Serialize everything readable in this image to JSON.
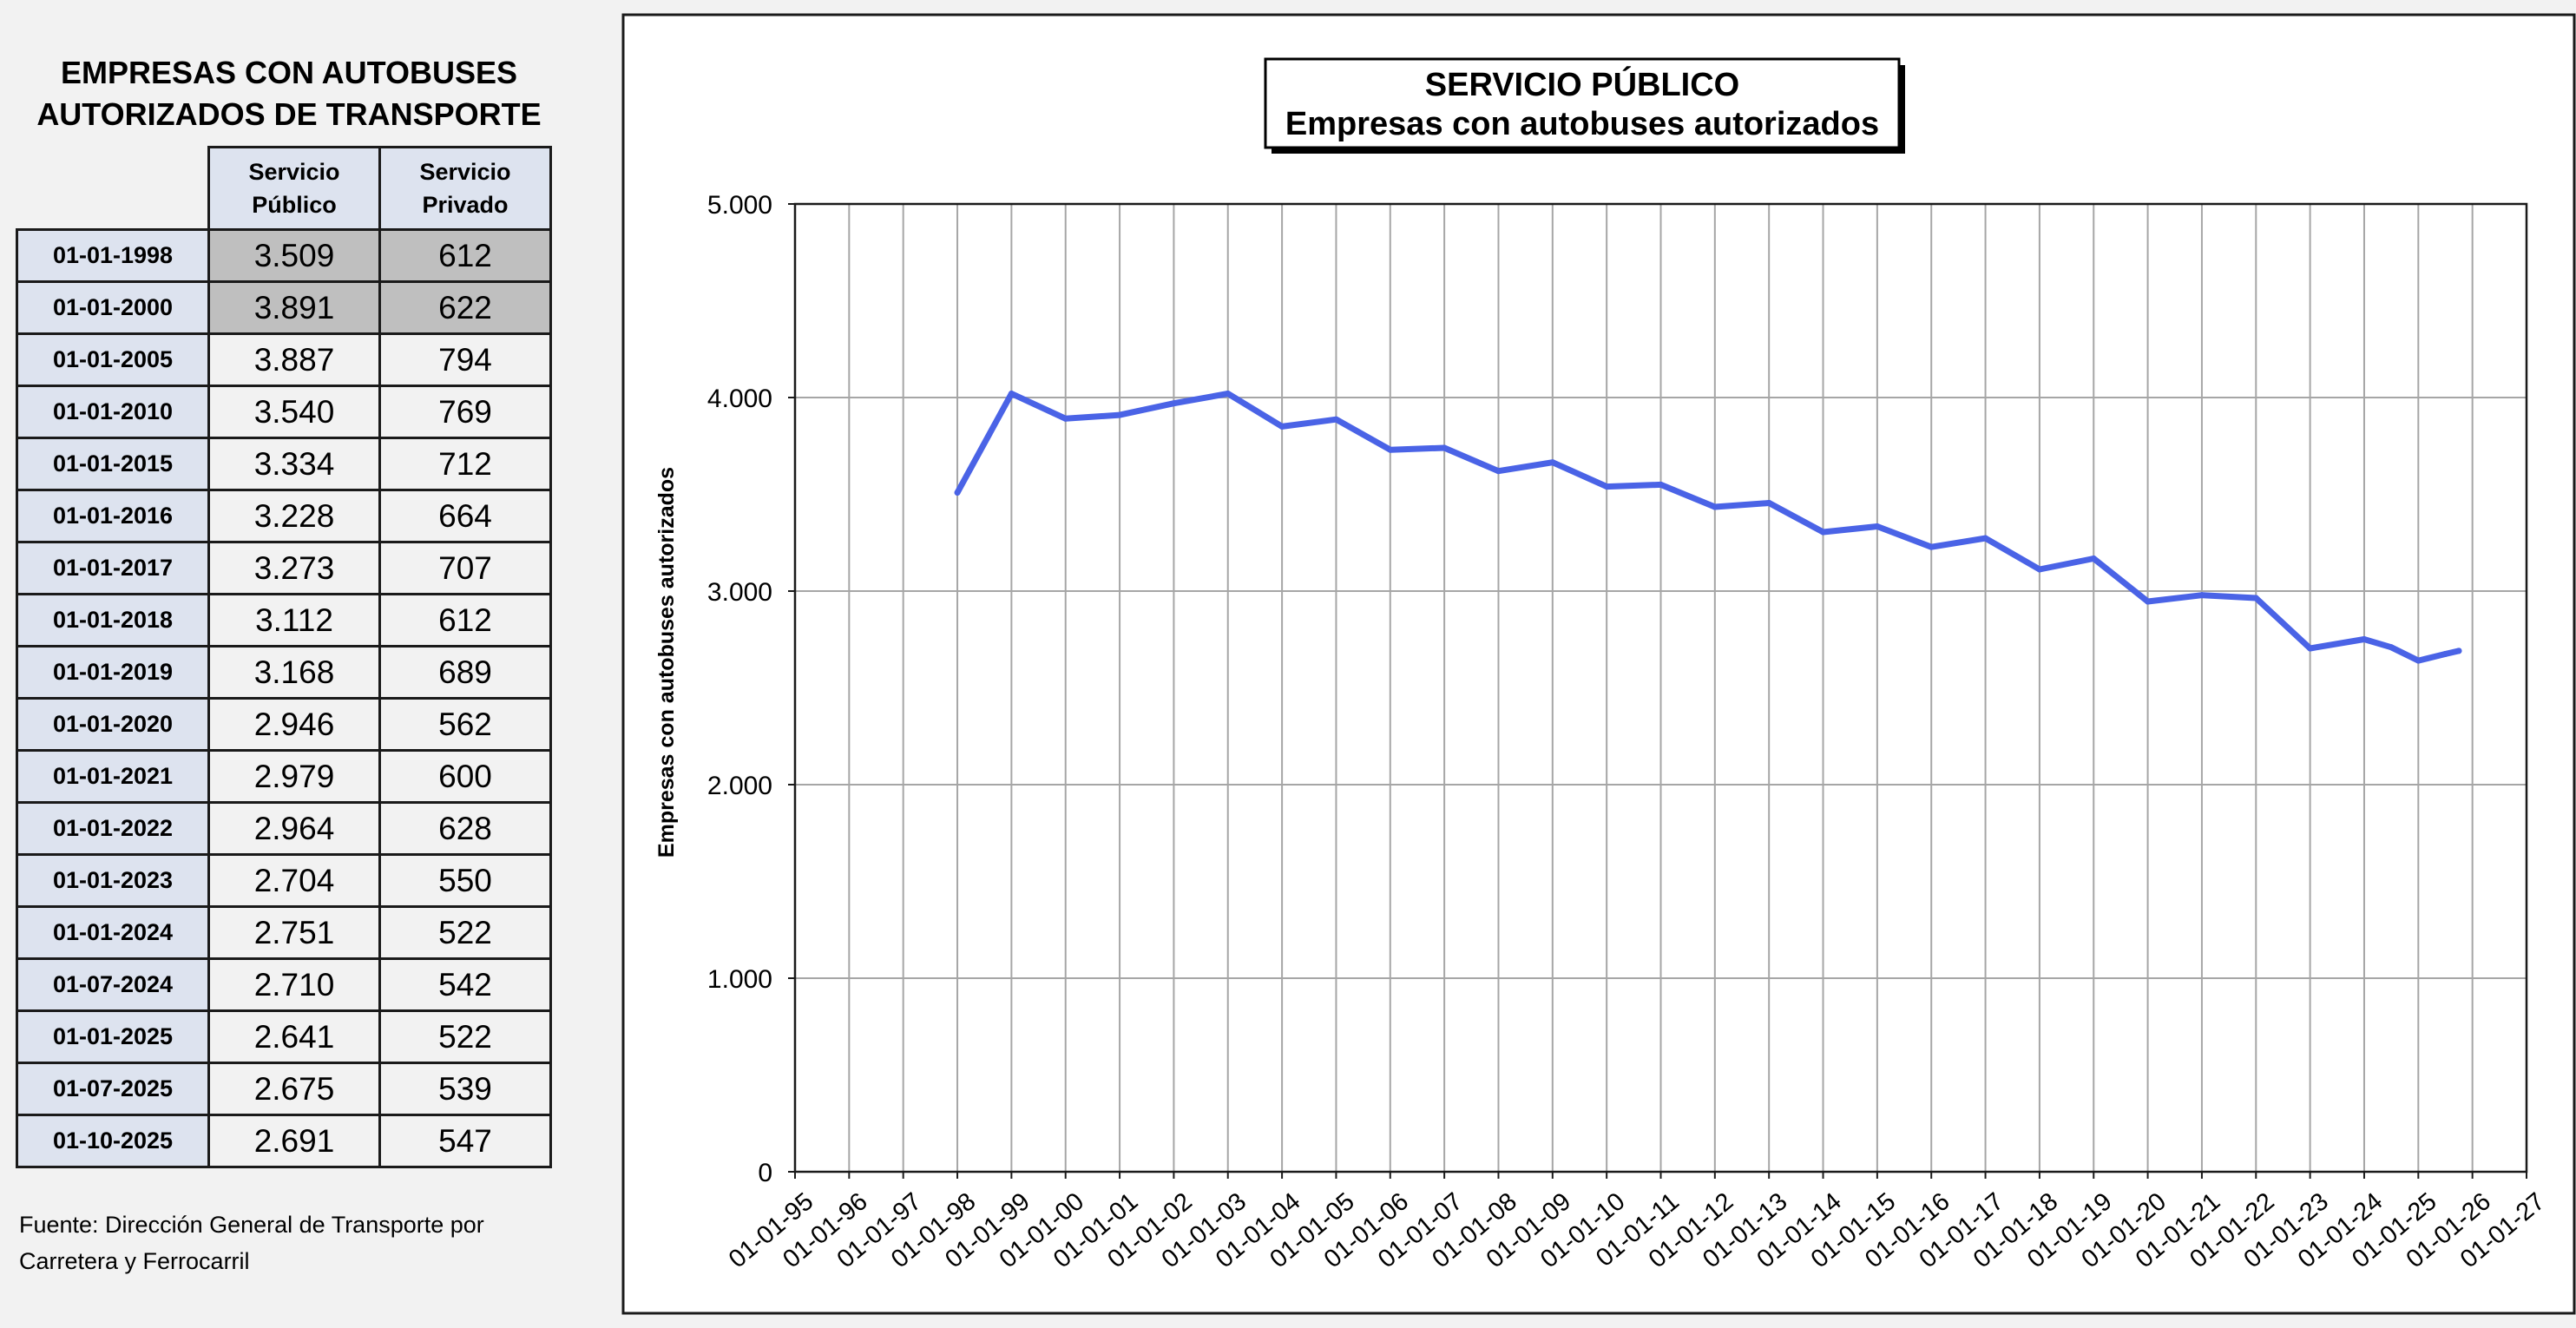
{
  "table": {
    "title_line1": "EMPRESAS CON AUTOBUSES",
    "title_line2": "AUTORIZADOS DE TRANSPORTE",
    "col1_line1": "Servicio",
    "col1_line2": "Público",
    "col2_line1": "Servicio",
    "col2_line2": "Privado",
    "rows": [
      {
        "date": "01-01-1998",
        "publico": "3.509",
        "privado": "612",
        "shaded": true
      },
      {
        "date": "01-01-2000",
        "publico": "3.891",
        "privado": "622",
        "shaded": true
      },
      {
        "date": "01-01-2005",
        "publico": "3.887",
        "privado": "794",
        "shaded": false
      },
      {
        "date": "01-01-2010",
        "publico": "3.540",
        "privado": "769",
        "shaded": false
      },
      {
        "date": "01-01-2015",
        "publico": "3.334",
        "privado": "712",
        "shaded": false
      },
      {
        "date": "01-01-2016",
        "publico": "3.228",
        "privado": "664",
        "shaded": false
      },
      {
        "date": "01-01-2017",
        "publico": "3.273",
        "privado": "707",
        "shaded": false
      },
      {
        "date": "01-01-2018",
        "publico": "3.112",
        "privado": "612",
        "shaded": false
      },
      {
        "date": "01-01-2019",
        "publico": "3.168",
        "privado": "689",
        "shaded": false
      },
      {
        "date": "01-01-2020",
        "publico": "2.946",
        "privado": "562",
        "shaded": false
      },
      {
        "date": "01-01-2021",
        "publico": "2.979",
        "privado": "600",
        "shaded": false
      },
      {
        "date": "01-01-2022",
        "publico": "2.964",
        "privado": "628",
        "shaded": false
      },
      {
        "date": "01-01-2023",
        "publico": "2.704",
        "privado": "550",
        "shaded": false
      },
      {
        "date": "01-01-2024",
        "publico": "2.751",
        "privado": "522",
        "shaded": false
      },
      {
        "date": "01-07-2024",
        "publico": "2.710",
        "privado": "542",
        "shaded": false
      },
      {
        "date": "01-01-2025",
        "publico": "2.641",
        "privado": "522",
        "shaded": false
      },
      {
        "date": "01-07-2025",
        "publico": "2.675",
        "privado": "539",
        "shaded": false
      },
      {
        "date": "01-10-2025",
        "publico": "2.691",
        "privado": "547",
        "shaded": false
      }
    ]
  },
  "source_line1": "Fuente: Dirección General de Transporte por",
  "source_line2": "Carretera y Ferrocarril",
  "chart_data": {
    "type": "line",
    "title_line1": "SERVICIO PÚBLICO",
    "title_line2": "Empresas con autobuses autorizados",
    "xlabel": "",
    "ylabel": "Empresas con autobuses autorizados",
    "ylim": [
      0,
      5000
    ],
    "y_ticks": [
      0,
      1000,
      2000,
      3000,
      4000,
      5000
    ],
    "y_tick_labels": [
      "0",
      "1.000",
      "2.000",
      "3.000",
      "4.000",
      "5.000"
    ],
    "x_ticks": [
      "01-01-95",
      "01-01-96",
      "01-01-97",
      "01-01-98",
      "01-01-99",
      "01-01-00",
      "01-01-01",
      "01-01-02",
      "01-01-03",
      "01-01-04",
      "01-01-05",
      "01-01-06",
      "01-01-07",
      "01-01-08",
      "01-01-09",
      "01-01-10",
      "01-01-11",
      "01-01-12",
      "01-01-13",
      "01-01-14",
      "01-01-15",
      "01-01-16",
      "01-01-17",
      "01-01-18",
      "01-01-19",
      "01-01-20",
      "01-01-21",
      "01-01-22",
      "01-01-23",
      "01-01-24",
      "01-01-25",
      "01-01-26",
      "01-01-27"
    ],
    "grid": true,
    "legend": "none",
    "line_color": "#4a63e6",
    "series": [
      {
        "x": [
          "1998-01-01",
          "1999-01-01",
          "2000-01-01",
          "2001-01-01",
          "2002-01-01",
          "2003-01-01",
          "2004-01-01",
          "2005-01-01",
          "2006-01-01",
          "2007-01-01",
          "2008-01-01",
          "2009-01-01",
          "2010-01-01",
          "2011-01-01",
          "2012-01-01",
          "2013-01-01",
          "2014-01-01",
          "2015-01-01",
          "2016-01-01",
          "2017-01-01",
          "2018-01-01",
          "2019-01-01",
          "2020-01-01",
          "2021-01-01",
          "2022-01-01",
          "2023-01-01",
          "2024-01-01",
          "2024-07-01",
          "2025-01-01",
          "2025-07-01",
          "2025-10-01"
        ],
        "y": [
          3509,
          4020,
          3891,
          3910,
          3970,
          4020,
          3850,
          3887,
          3730,
          3740,
          3620,
          3665,
          3540,
          3550,
          3435,
          3455,
          3305,
          3334,
          3228,
          3273,
          3112,
          3168,
          2946,
          2979,
          2964,
          2704,
          2751,
          2710,
          2641,
          2675,
          2691
        ]
      }
    ]
  }
}
